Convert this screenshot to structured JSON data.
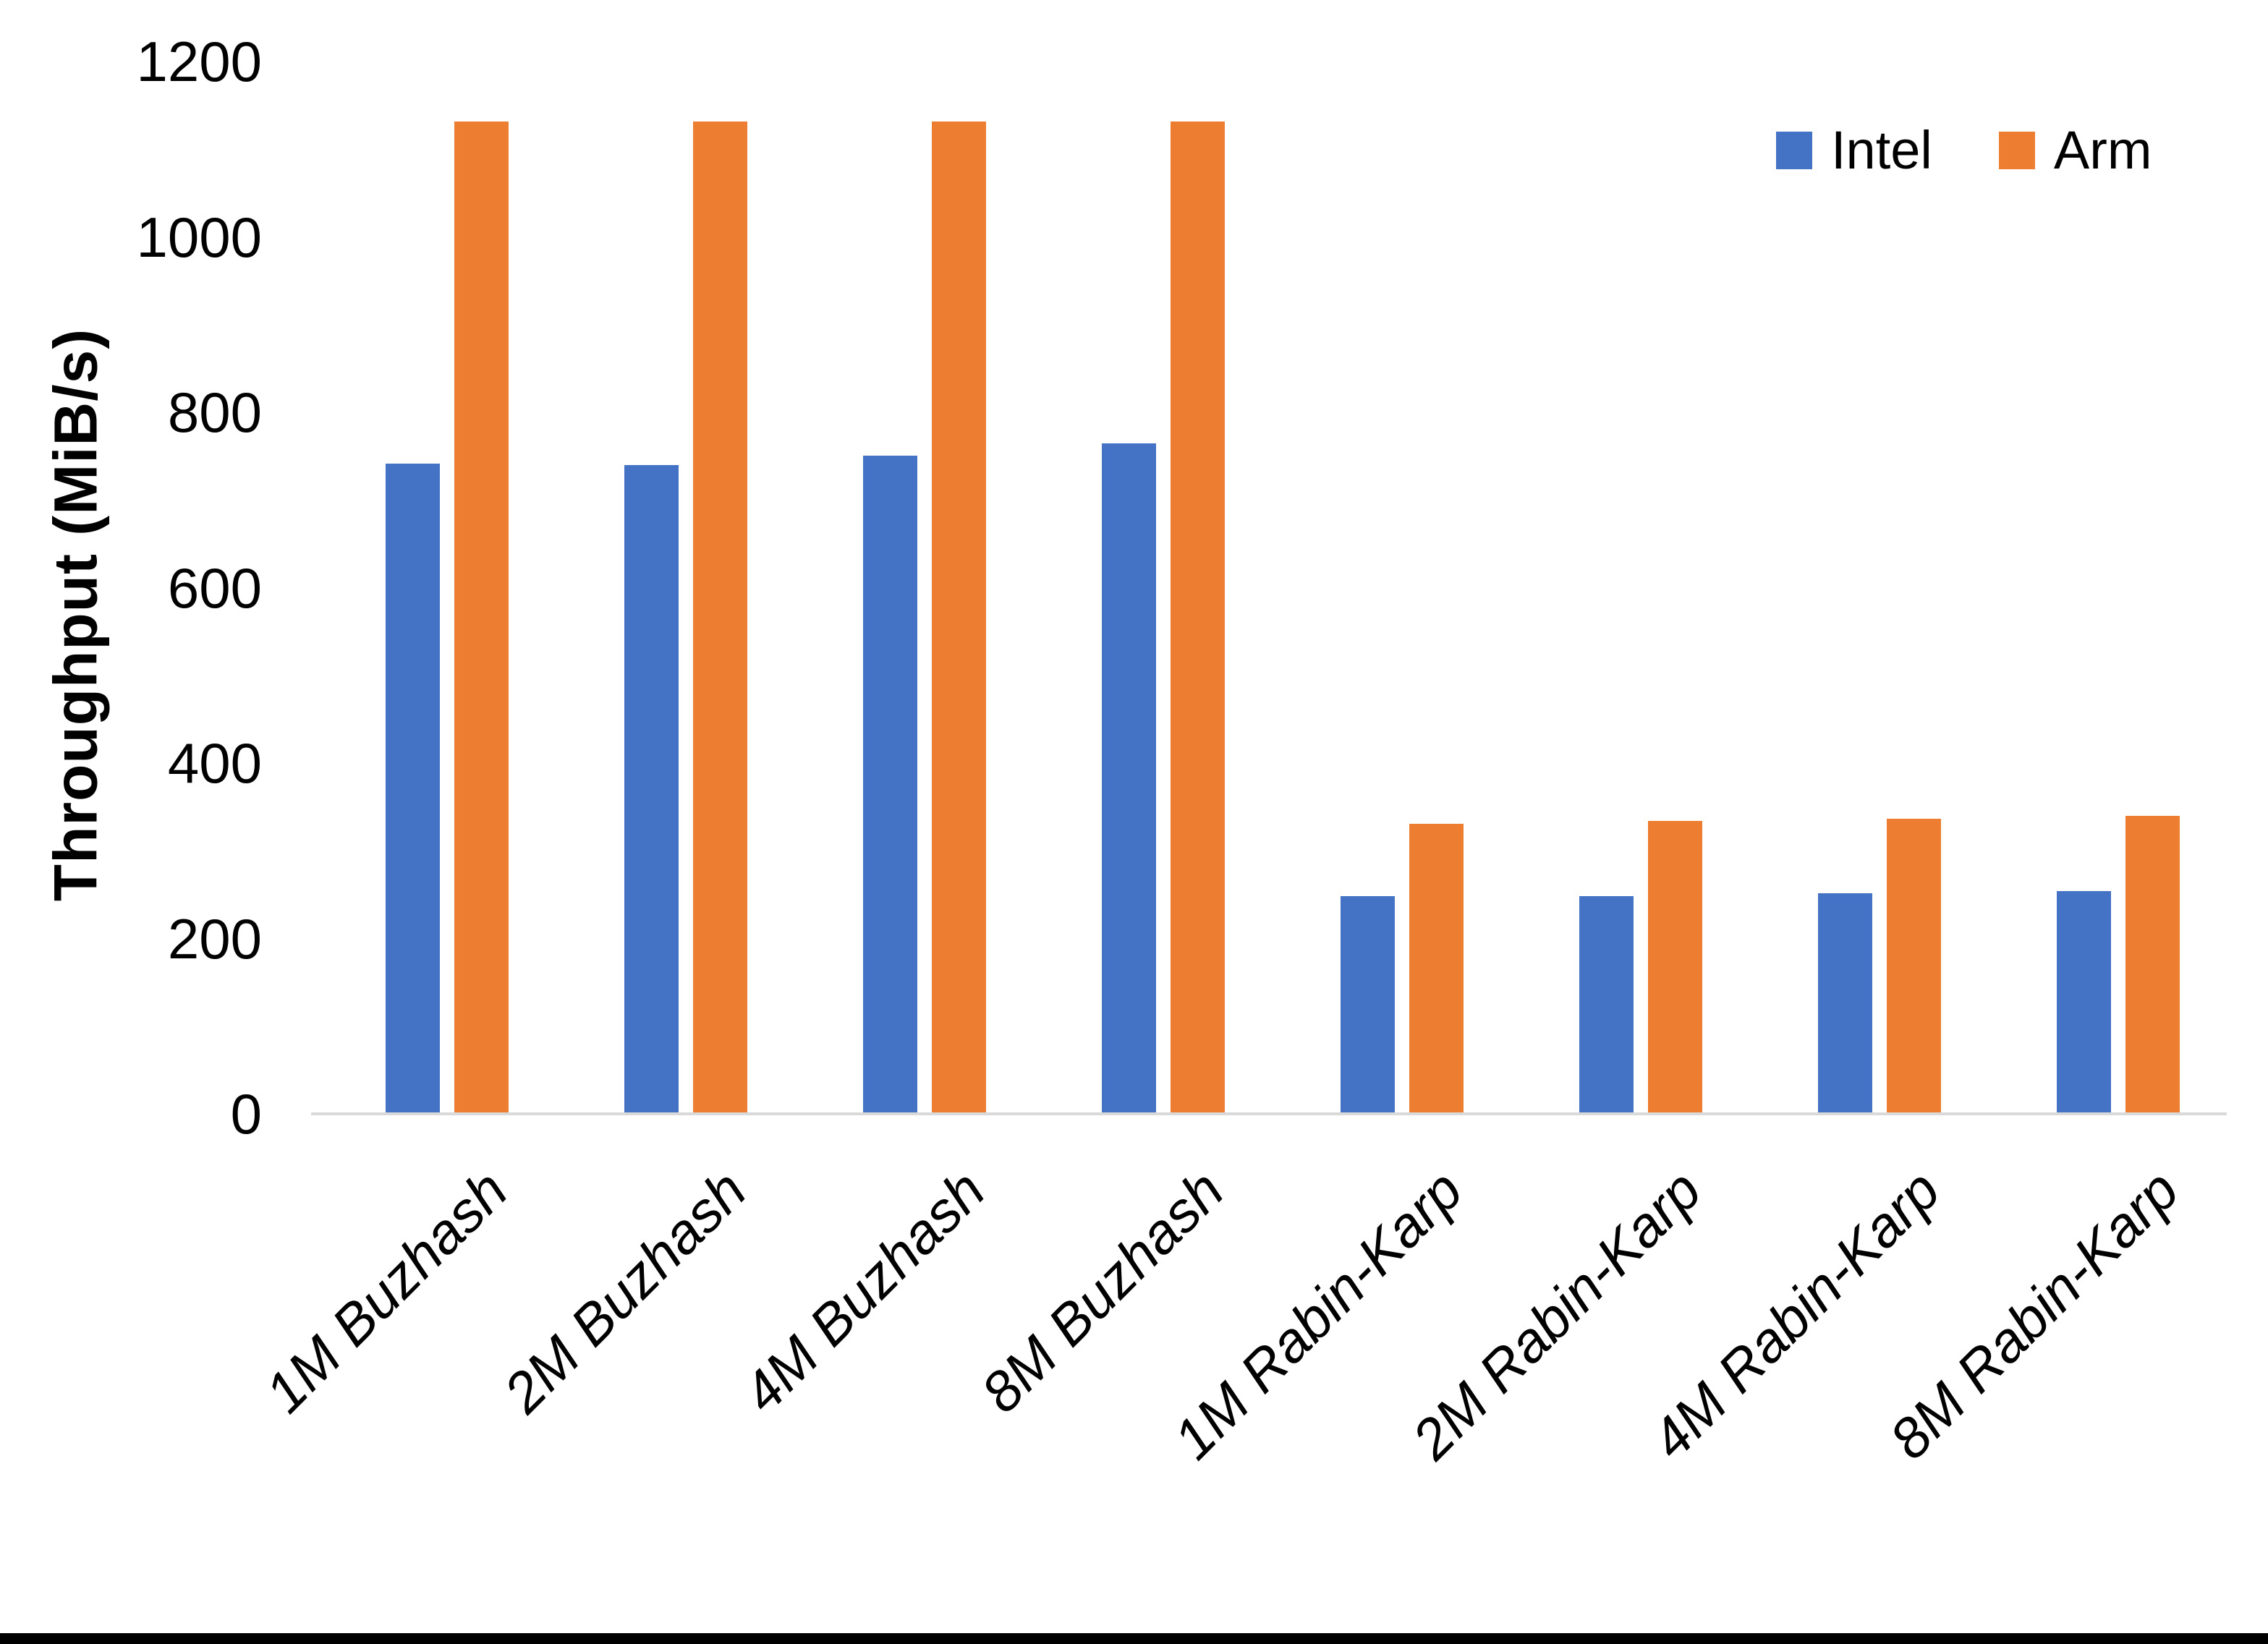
{
  "figure": {
    "background_color": "#FFFFFF",
    "bottom_border_color": "#000000",
    "axis_line_color": "#D9D9D9",
    "text_color": "#000000"
  },
  "chart_data": {
    "type": "bar",
    "title": "",
    "ylabel": "Throughput (MiB/s)",
    "xlabel": "",
    "ylim": [
      0,
      1200
    ],
    "yticks": [
      0,
      200,
      400,
      600,
      800,
      1000,
      1200
    ],
    "grid": false,
    "legend_position": "top-right",
    "categories": [
      "1M Buzhash",
      "2M Buzhash",
      "4M Buzhash",
      "8M Buzhash",
      "1M Rabin-Karp",
      "2M Rabin-Karp",
      "4M Rabin-Karp",
      "8M Rabin-Karp"
    ],
    "series": [
      {
        "name": "Intel",
        "color": "#4472C4",
        "values": [
          740,
          738,
          749,
          763,
          247,
          247,
          250,
          252
        ]
      },
      {
        "name": "Arm",
        "color": "#ED7D31",
        "values": [
          1130,
          1130,
          1130,
          1130,
          329,
          332,
          335,
          338
        ]
      }
    ]
  }
}
